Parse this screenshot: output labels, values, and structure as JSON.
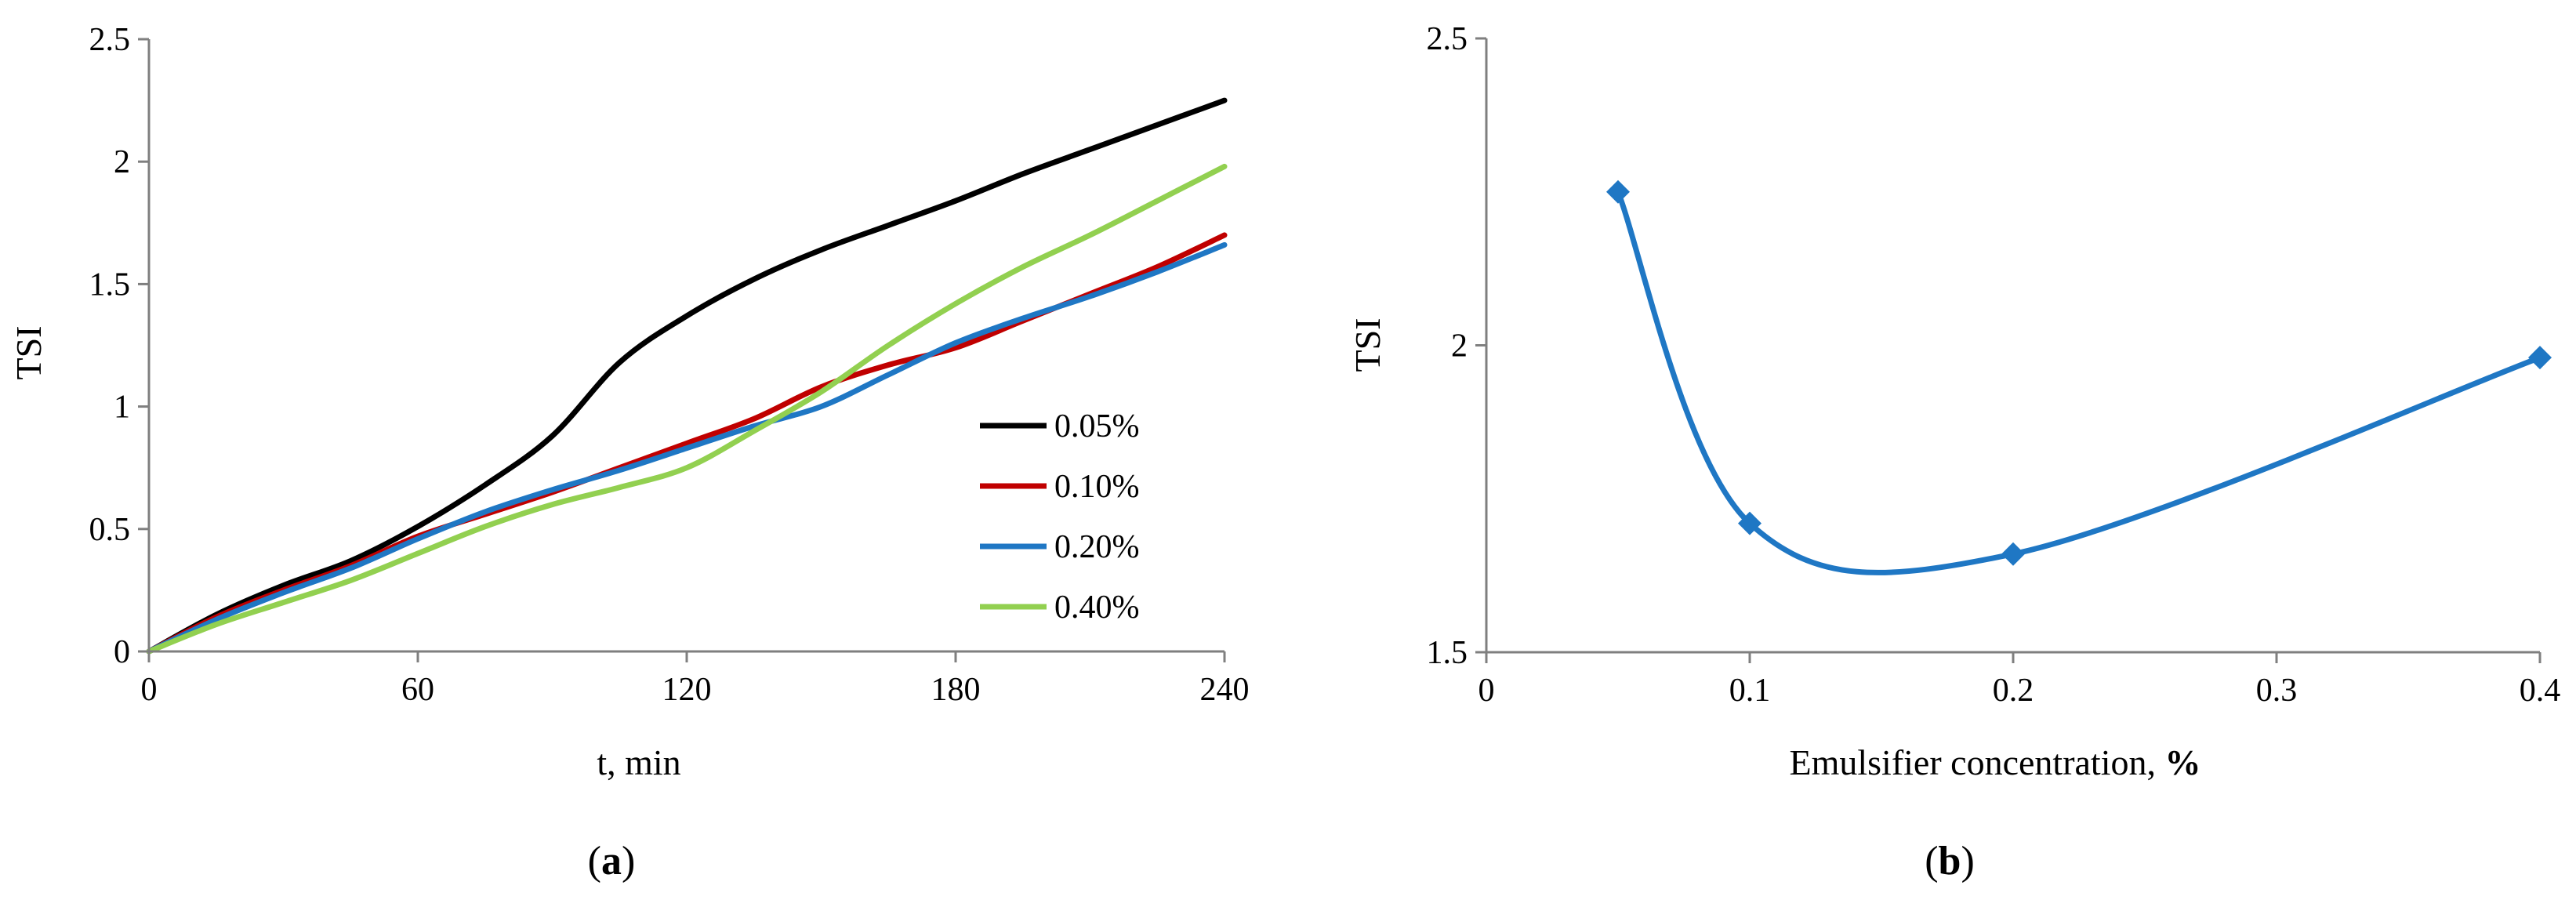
{
  "chart_data": [
    {
      "type": "line",
      "caption_letter": "a",
      "xlabel": "t, min",
      "ylabel": "TSI",
      "xlim": [
        0,
        240
      ],
      "ylim": [
        0,
        2.5
      ],
      "x_ticks": [
        0,
        60,
        120,
        180,
        240
      ],
      "y_ticks": [
        0,
        0.5,
        1,
        1.5,
        2,
        2.5
      ],
      "x_tick_labels": [
        "0",
        "60",
        "120",
        "180",
        "240"
      ],
      "y_tick_labels": [
        "0",
        "0.5",
        "1",
        "1.5",
        "2",
        "2.5"
      ],
      "grid": false,
      "legend_position": "right",
      "series": [
        {
          "name": "0.05%",
          "color": "#000000",
          "x": [
            0,
            15,
            30,
            45,
            60,
            75,
            90,
            105,
            120,
            135,
            150,
            165,
            180,
            195,
            210,
            225,
            240
          ],
          "y": [
            0,
            0.15,
            0.27,
            0.37,
            0.51,
            0.68,
            0.88,
            1.18,
            1.37,
            1.52,
            1.64,
            1.74,
            1.84,
            1.95,
            2.05,
            2.15,
            2.25
          ]
        },
        {
          "name": "0.10%",
          "color": "#c00000",
          "x": [
            0,
            15,
            30,
            45,
            60,
            75,
            90,
            105,
            120,
            135,
            150,
            165,
            180,
            195,
            210,
            225,
            240
          ],
          "y": [
            0,
            0.14,
            0.25,
            0.35,
            0.47,
            0.56,
            0.65,
            0.75,
            0.85,
            0.95,
            1.08,
            1.17,
            1.24,
            1.35,
            1.46,
            1.57,
            1.7
          ]
        },
        {
          "name": "0.20%",
          "color": "#1f77c4",
          "x": [
            0,
            15,
            30,
            45,
            60,
            75,
            90,
            105,
            120,
            135,
            150,
            165,
            180,
            195,
            210,
            225,
            240
          ],
          "y": [
            0,
            0.13,
            0.24,
            0.34,
            0.46,
            0.57,
            0.66,
            0.74,
            0.83,
            0.92,
            1.0,
            1.13,
            1.26,
            1.36,
            1.45,
            1.55,
            1.66
          ]
        },
        {
          "name": "0.40%",
          "color": "#92d050",
          "x": [
            0,
            15,
            30,
            45,
            60,
            75,
            90,
            105,
            120,
            135,
            150,
            165,
            180,
            195,
            210,
            225,
            240
          ],
          "y": [
            0,
            0.11,
            0.2,
            0.29,
            0.4,
            0.51,
            0.6,
            0.67,
            0.75,
            0.9,
            1.06,
            1.25,
            1.42,
            1.57,
            1.7,
            1.84,
            1.98
          ]
        }
      ]
    },
    {
      "type": "line",
      "caption_letter": "b",
      "xlabel": "Emulsifier concentration, ",
      "xlabel_unit": "%",
      "ylabel": "TSI",
      "xlim": [
        0,
        0.4
      ],
      "ylim": [
        1.5,
        2.5
      ],
      "x_ticks": [
        0,
        0.1,
        0.2,
        0.3,
        0.4
      ],
      "y_ticks": [
        1.5,
        2,
        2.5
      ],
      "x_tick_labels": [
        "0",
        "0.1",
        "0.2",
        "0.3",
        "0.4"
      ],
      "y_tick_labels": [
        "1.5",
        "2",
        "2.5"
      ],
      "grid": false,
      "marker": "diamond",
      "series": [
        {
          "color": "#1f77c4",
          "x": [
            0.05,
            0.1,
            0.2,
            0.4
          ],
          "y": [
            2.25,
            1.71,
            1.66,
            1.98
          ]
        }
      ]
    }
  ]
}
